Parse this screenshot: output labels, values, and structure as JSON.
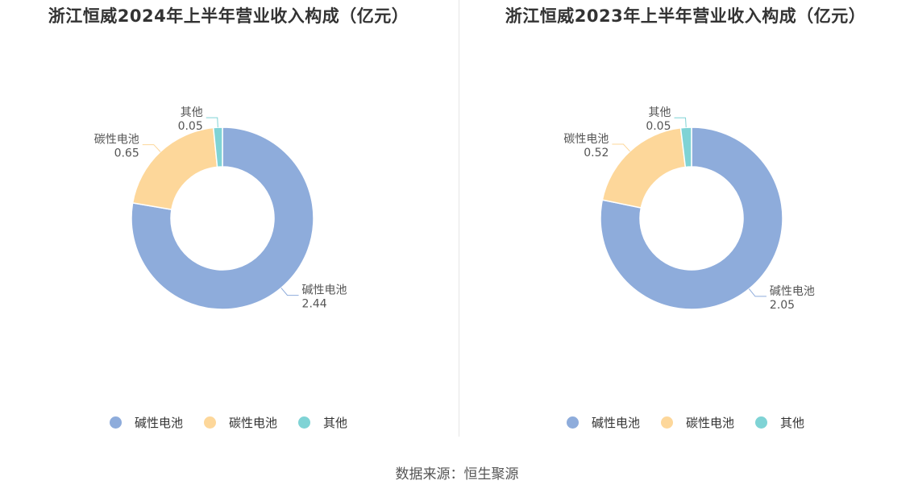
{
  "chart_data": [
    {
      "type": "pie",
      "title": "浙江恒威2024年上半年营业收入构成（亿元）",
      "categories": [
        "碱性电池",
        "碳性电池",
        "其他"
      ],
      "values": [
        2.44,
        0.65,
        0.05
      ],
      "value_labels": [
        "2.44",
        "0.65",
        "0.05"
      ],
      "colors": [
        "#8eacdb",
        "#fdd79a",
        "#7fd3d5"
      ],
      "donut": true,
      "legend_position": "bottom"
    },
    {
      "type": "pie",
      "title": "浙江恒威2023年上半年营业收入构成（亿元）",
      "categories": [
        "碱性电池",
        "碳性电池",
        "其他"
      ],
      "values": [
        2.05,
        0.52,
        0.05
      ],
      "value_labels": [
        "2.05",
        "0.52",
        "0.05"
      ],
      "colors": [
        "#8eacdb",
        "#fdd79a",
        "#7fd3d5"
      ],
      "donut": true,
      "legend_position": "bottom"
    }
  ],
  "source": "数据来源：恒生聚源"
}
